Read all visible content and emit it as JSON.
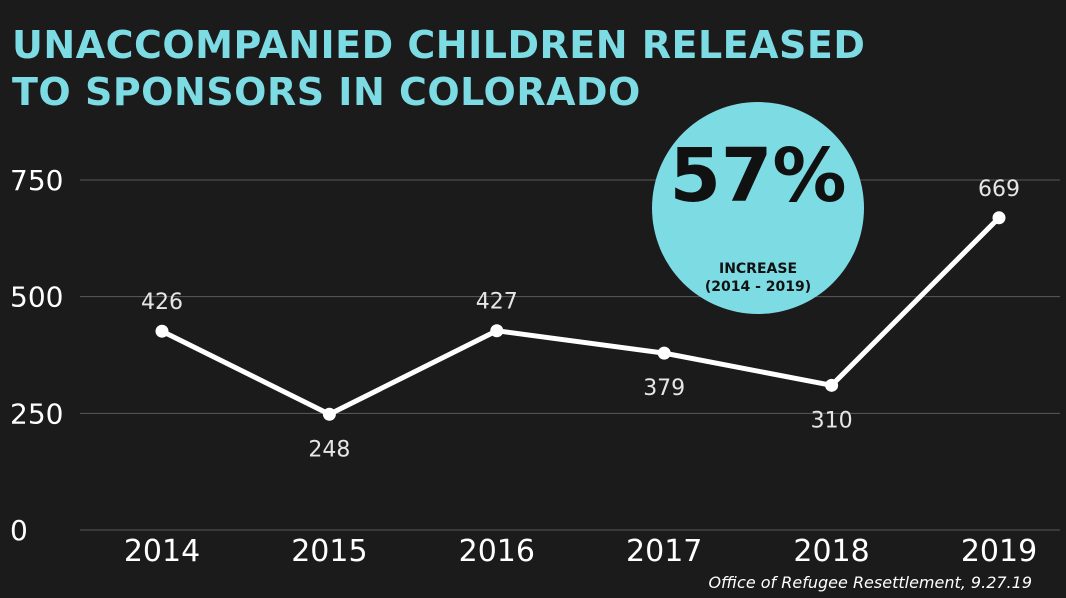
{
  "title": {
    "line1": "UNACCOMPANIED CHILDREN RELEASED",
    "line2": "TO SPONSORS IN COLORADO"
  },
  "callout": {
    "value": "57%",
    "label": "INCREASE",
    "sublabel": "(2014 - 2019)"
  },
  "source": "Office of Refugee Resettlement, 9.27.19",
  "colors": {
    "accent": "#7cdbe3",
    "background": "#1b1b1c",
    "line": "#ffffff",
    "grid": "#5a5a5a"
  },
  "chart_data": {
    "type": "line",
    "title": "UNACCOMPANIED CHILDREN RELEASED TO SPONSORS IN COLORADO",
    "categories": [
      "2014",
      "2015",
      "2016",
      "2017",
      "2018",
      "2019"
    ],
    "values": [
      426,
      248,
      427,
      379,
      310,
      669
    ],
    "data_labels": [
      "426",
      "248",
      "427",
      "379",
      "310",
      "669"
    ],
    "label_positions": [
      "above",
      "below",
      "above",
      "below",
      "below",
      "above"
    ],
    "yticks": [
      0,
      250,
      500,
      750
    ],
    "ytick_labels": [
      "0",
      "250",
      "500",
      "750"
    ],
    "ylim": [
      0,
      750
    ],
    "xlabel": "",
    "ylabel": "",
    "grid": true,
    "legend": "none"
  }
}
